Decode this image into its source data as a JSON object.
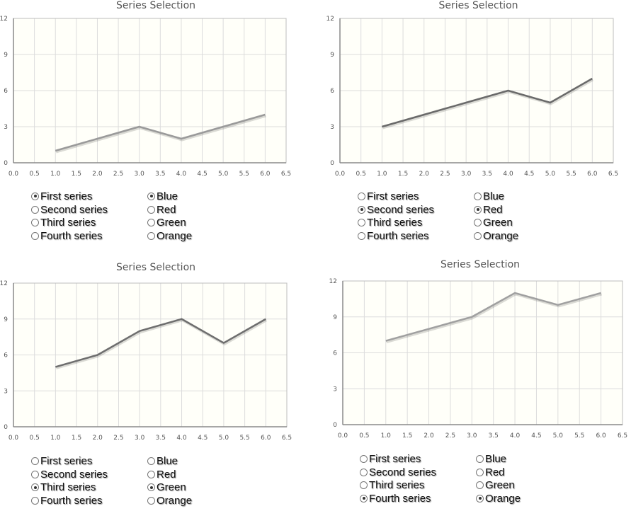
{
  "series_options": [
    "First series",
    "Second series",
    "Third series",
    "Fourth series"
  ],
  "color_options": [
    "Blue",
    "Red",
    "Green",
    "Orange"
  ],
  "chart_data": [
    {
      "type": "line",
      "title": "Series Selection",
      "x": [
        1,
        2,
        3,
        4,
        5,
        6
      ],
      "series": [
        {
          "values": [
            1,
            2,
            3,
            2,
            3,
            4
          ],
          "color": "#9a9a9a"
        }
      ],
      "xlim": [
        0,
        6.5
      ],
      "ylim": [
        0,
        12
      ],
      "x_ticks": [
        "0.0",
        "0.5",
        "1.0",
        "1.5",
        "2.0",
        "2.5",
        "3.0",
        "3.5",
        "4.0",
        "4.5",
        "5.0",
        "5.5",
        "6.0",
        "6.5"
      ],
      "y_ticks": [
        "0",
        "3",
        "6",
        "9",
        "12"
      ],
      "grid": true,
      "selected_series": "First series",
      "selected_color": "Blue"
    },
    {
      "type": "line",
      "title": "Series Selection",
      "x": [
        1,
        2,
        3,
        4,
        5,
        6
      ],
      "series": [
        {
          "values": [
            3,
            4,
            5,
            6,
            5,
            7
          ],
          "color": "#6a6a6a"
        }
      ],
      "xlim": [
        0,
        6.5
      ],
      "ylim": [
        0,
        12
      ],
      "x_ticks": [
        "0.0",
        "0.5",
        "1.0",
        "1.5",
        "2.0",
        "2.5",
        "3.0",
        "3.5",
        "4.0",
        "4.5",
        "5.0",
        "5.5",
        "6.0",
        "6.5"
      ],
      "y_ticks": [
        "0",
        "3",
        "6",
        "9",
        "12"
      ],
      "grid": true,
      "selected_series": "Second series",
      "selected_color": "Red"
    },
    {
      "type": "line",
      "title": "Series Selection",
      "x": [
        1,
        2,
        3,
        4,
        5,
        6
      ],
      "series": [
        {
          "values": [
            5,
            6,
            8,
            9,
            7,
            9
          ],
          "color": "#6e6e6e"
        }
      ],
      "xlim": [
        0,
        6.5
      ],
      "ylim": [
        0,
        12
      ],
      "x_ticks": [
        "0.0",
        "0.5",
        "1.0",
        "1.5",
        "2.0",
        "2.5",
        "3.0",
        "3.5",
        "4.0",
        "4.5",
        "5.0",
        "5.5",
        "6.0",
        "6.5"
      ],
      "y_ticks": [
        "0",
        "3",
        "6",
        "9",
        "12"
      ],
      "grid": true,
      "selected_series": "Third series",
      "selected_color": "Green"
    },
    {
      "type": "line",
      "title": "Series Selection",
      "x": [
        1,
        2,
        3,
        4,
        5,
        6
      ],
      "series": [
        {
          "values": [
            7,
            8,
            9,
            11,
            10,
            11
          ],
          "color": "#a0a0a0"
        }
      ],
      "xlim": [
        0,
        6.5
      ],
      "ylim": [
        0,
        12
      ],
      "x_ticks": [
        "0.0",
        "0.5",
        "1.0",
        "1.5",
        "2.0",
        "2.5",
        "3.0",
        "3.5",
        "4.0",
        "4.5",
        "5.0",
        "5.5",
        "6.0",
        "6.5"
      ],
      "y_ticks": [
        "0",
        "3",
        "6",
        "9",
        "12"
      ],
      "grid": true,
      "selected_series": "Fourth series",
      "selected_color": "Orange"
    }
  ]
}
